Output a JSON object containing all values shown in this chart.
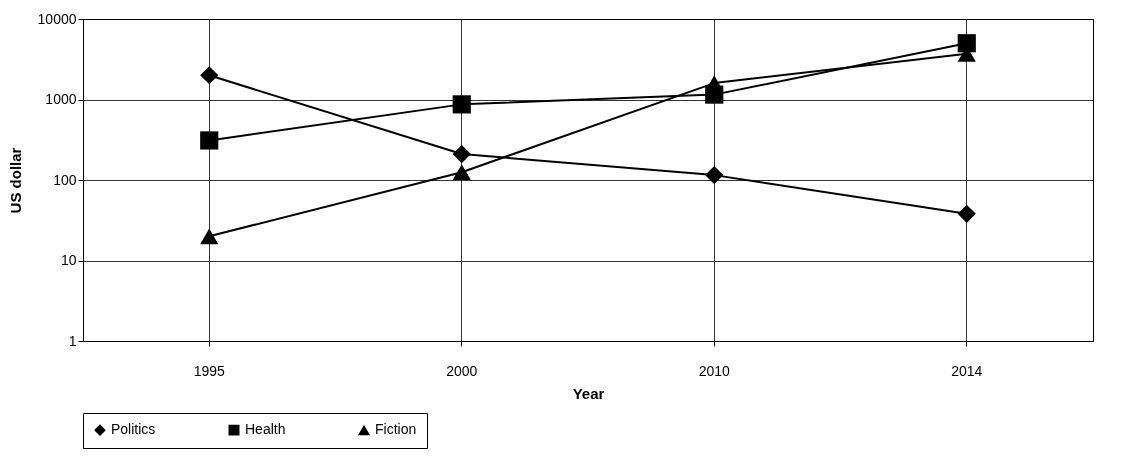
{
  "chart_data": {
    "type": "line",
    "xlabel": "Year",
    "ylabel": "US dollar",
    "categories": [
      "1995",
      "2000",
      "2010",
      "2014"
    ],
    "series": [
      {
        "name": "Politics",
        "color": "#000000",
        "marker": "diamond",
        "values": [
          2000,
          210,
          115,
          38
        ]
      },
      {
        "name": "Health",
        "color": "#000000",
        "marker": "square",
        "values": [
          310,
          870,
          1150,
          5000
        ]
      },
      {
        "name": "Fiction",
        "color": "#000000",
        "marker": "triangle",
        "values": [
          20,
          125,
          1600,
          3700
        ]
      }
    ],
    "log": true,
    "ylim": [
      1,
      10000
    ],
    "yticks": [
      1,
      10,
      100,
      1000,
      10000
    ],
    "grid": true,
    "legend": "bottom"
  }
}
